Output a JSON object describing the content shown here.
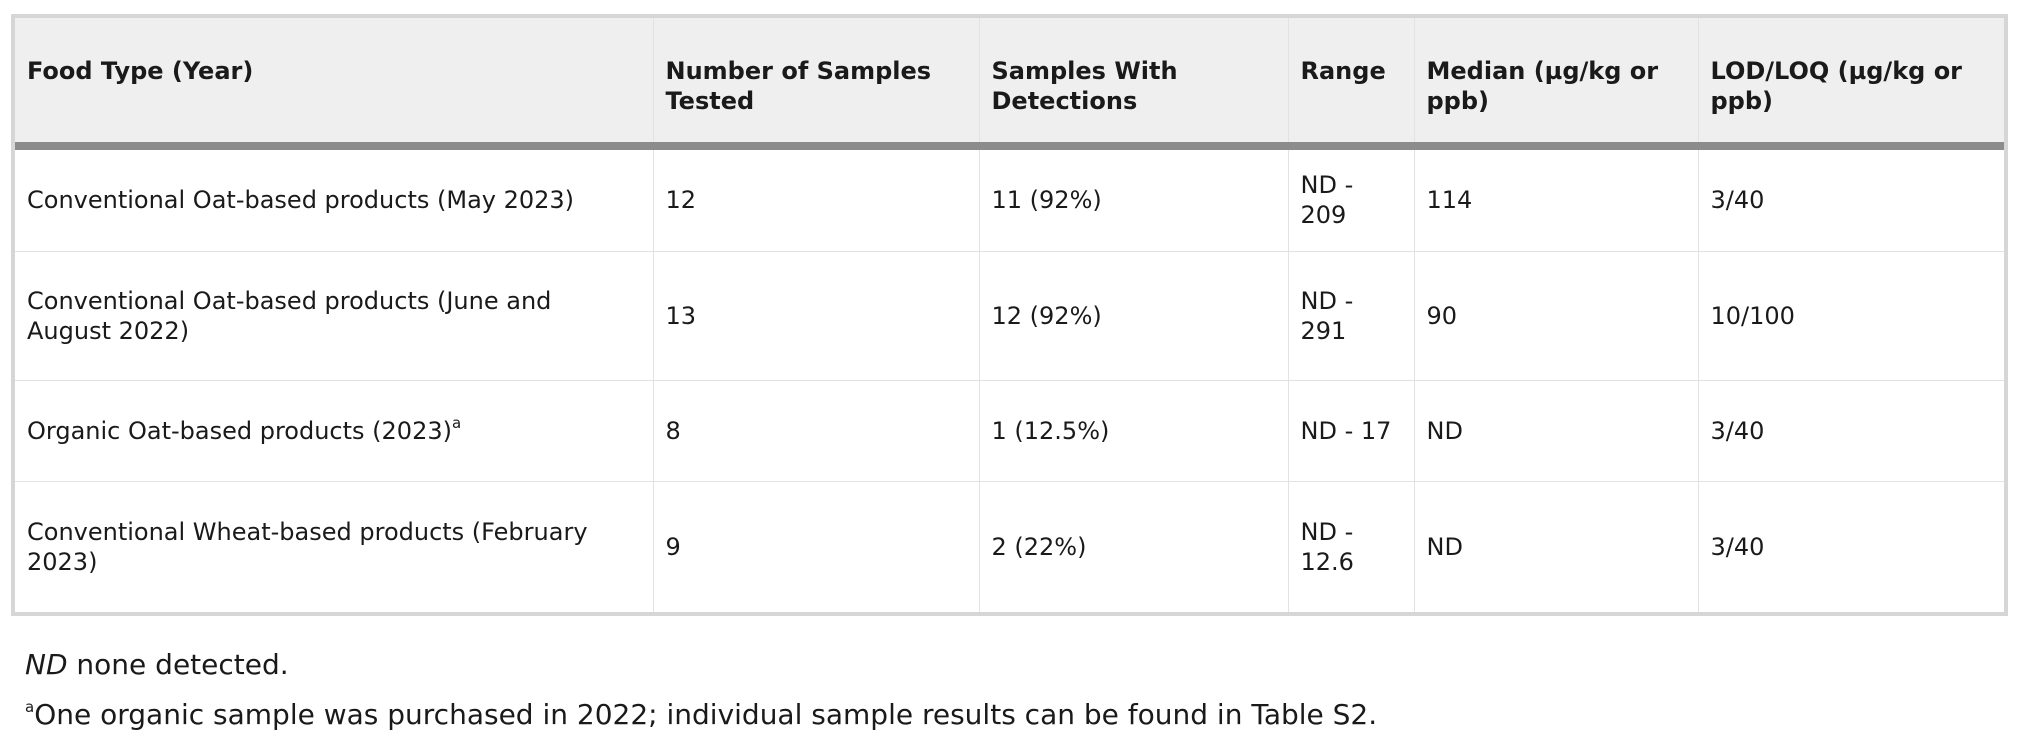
{
  "table": {
    "headers": [
      "Food Type (Year)",
      "Number of Samples Tested",
      "Samples With Detections",
      "Range",
      "Median (µg/kg or ppb)",
      "LOD/LOQ (µg/kg or ppb)"
    ],
    "rows": [
      {
        "food": "Conventional Oat-based products (May 2023)",
        "food_sup": "",
        "samples": "12",
        "detections": "11 (92%)",
        "range": "ND - 209",
        "median": "114",
        "lodloq": "3/40"
      },
      {
        "food": "Conventional Oat-based products (June and August 2022)",
        "food_sup": "",
        "samples": "13",
        "detections": "12 (92%)",
        "range": "ND - 291",
        "median": "90",
        "lodloq": "10/100"
      },
      {
        "food": "Organic Oat-based products (2023)",
        "food_sup": "a",
        "samples": "8",
        "detections": "1 (12.5%)",
        "range": "ND - 17",
        "median": "ND",
        "lodloq": "3/40"
      },
      {
        "food": "Conventional Wheat-based products (February 2023)",
        "food_sup": "",
        "samples": "9",
        "detections": "2 (22%)",
        "range": "ND - 12.6",
        "median": "ND",
        "lodloq": "3/40"
      }
    ]
  },
  "notes": {
    "nd_abbr": "ND",
    "nd_text": " none detected.",
    "footnote_marker": "a",
    "footnote_text": "One organic sample was purchased in 2022; individual sample results can be found in Table S2."
  }
}
